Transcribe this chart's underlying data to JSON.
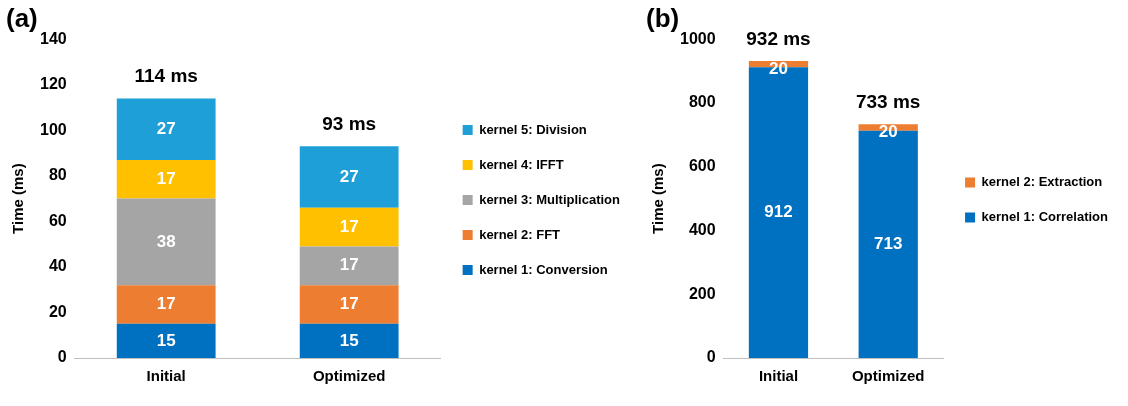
{
  "chart_data": [
    {
      "type": "bar",
      "title": "(a)",
      "ylabel": "Time (ms)",
      "categories": [
        "Initial",
        "Optimized"
      ],
      "stacked": true,
      "ylim": [
        0,
        140
      ],
      "yticks": [
        0,
        20,
        40,
        60,
        80,
        100,
        120,
        140
      ],
      "grid": false,
      "legend": "right",
      "data_labels": true,
      "totals": [
        "114 ms",
        "93 ms"
      ],
      "series": [
        {
          "name": "kernel 1: Conversion",
          "color": "#0070c0",
          "values": [
            15,
            15
          ]
        },
        {
          "name": "kernel 2: FFT",
          "color": "#ed7d31",
          "values": [
            17,
            17
          ]
        },
        {
          "name": "kernel 3: Multiplication",
          "color": "#a5a5a5",
          "values": [
            38,
            17
          ]
        },
        {
          "name": "kernel 4: IFFT",
          "color": "#ffc000",
          "values": [
            17,
            17
          ]
        },
        {
          "name": "kernel 5: Division",
          "color": "#1f9fd8",
          "values": [
            27,
            27
          ]
        }
      ]
    },
    {
      "type": "bar",
      "title": "(b)",
      "ylabel": "Time (ms)",
      "categories": [
        "Initial",
        "Optimized"
      ],
      "stacked": true,
      "ylim": [
        0,
        1000
      ],
      "yticks": [
        0,
        200,
        400,
        600,
        800,
        1000
      ],
      "grid": false,
      "legend": "right",
      "data_labels": true,
      "totals": [
        "932 ms",
        "733 ms"
      ],
      "series": [
        {
          "name": "kernel 1: Correlation",
          "color": "#0070c0",
          "values": [
            912,
            713
          ]
        },
        {
          "name": "kernel 2: Extraction",
          "color": "#ed7d31",
          "values": [
            20,
            20
          ]
        }
      ]
    }
  ]
}
